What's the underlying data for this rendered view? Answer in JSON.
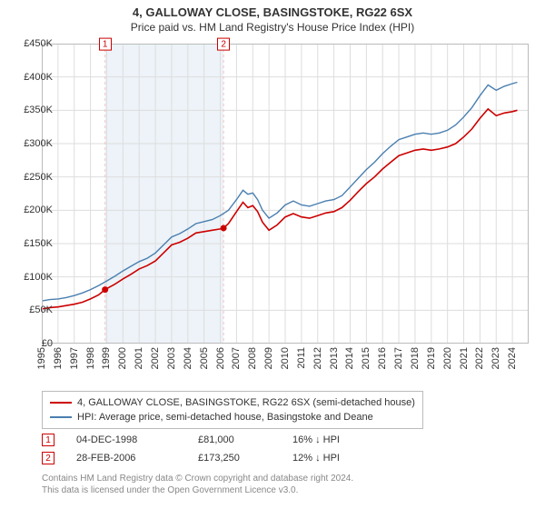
{
  "title_line1": "4, GALLOWAY CLOSE, BASINGSTOKE, RG22 6SX",
  "title_line2": "Price paid vs. HM Land Registry's House Price Index (HPI)",
  "chart": {
    "y_axis": {
      "min": 0,
      "max": 450000,
      "step": 50000,
      "labels": [
        "£0",
        "£50K",
        "£100K",
        "£150K",
        "£200K",
        "£250K",
        "£300K",
        "£350K",
        "£400K",
        "£450K"
      ]
    },
    "x_axis": {
      "min": 1995,
      "max": 2025,
      "labels": [
        "1995",
        "1996",
        "1997",
        "1998",
        "1999",
        "2000",
        "2001",
        "2002",
        "2003",
        "2004",
        "2005",
        "2006",
        "2007",
        "2008",
        "2009",
        "2010",
        "2011",
        "2012",
        "2013",
        "2014",
        "2015",
        "2016",
        "2017",
        "2018",
        "2019",
        "2020",
        "2021",
        "2022",
        "2023",
        "2024"
      ]
    },
    "grid_color": "#dddddd",
    "highlight_band_color": "#edf3f8",
    "highlight_start": 1998.9,
    "highlight_end": 2006.2,
    "vline_color": "#f4c2c2",
    "series": [
      {
        "name": "property",
        "color": "#cc0000",
        "stroke_width": 1.6,
        "points": [
          [
            1995.0,
            52000
          ],
          [
            1995.5,
            54000
          ],
          [
            1996.0,
            55000
          ],
          [
            1996.5,
            57000
          ],
          [
            1997.0,
            59000
          ],
          [
            1997.5,
            62000
          ],
          [
            1998.0,
            67000
          ],
          [
            1998.5,
            73000
          ],
          [
            1998.9,
            81000
          ],
          [
            1999.5,
            89000
          ],
          [
            2000.0,
            97000
          ],
          [
            2000.5,
            104000
          ],
          [
            2001.0,
            112000
          ],
          [
            2001.5,
            117000
          ],
          [
            2002.0,
            124000
          ],
          [
            2002.5,
            136000
          ],
          [
            2003.0,
            148000
          ],
          [
            2003.5,
            152000
          ],
          [
            2004.0,
            158000
          ],
          [
            2004.5,
            166000
          ],
          [
            2005.0,
            168000
          ],
          [
            2005.5,
            170000
          ],
          [
            2006.0,
            172000
          ],
          [
            2006.2,
            173250
          ],
          [
            2006.5,
            180000
          ],
          [
            2007.0,
            198000
          ],
          [
            2007.4,
            212000
          ],
          [
            2007.7,
            204000
          ],
          [
            2008.0,
            207000
          ],
          [
            2008.3,
            198000
          ],
          [
            2008.6,
            182000
          ],
          [
            2009.0,
            170000
          ],
          [
            2009.5,
            178000
          ],
          [
            2010.0,
            190000
          ],
          [
            2010.5,
            195000
          ],
          [
            2011.0,
            190000
          ],
          [
            2011.5,
            188000
          ],
          [
            2012.0,
            192000
          ],
          [
            2012.5,
            196000
          ],
          [
            2013.0,
            198000
          ],
          [
            2013.5,
            204000
          ],
          [
            2014.0,
            215000
          ],
          [
            2014.5,
            228000
          ],
          [
            2015.0,
            240000
          ],
          [
            2015.5,
            250000
          ],
          [
            2016.0,
            262000
          ],
          [
            2016.5,
            272000
          ],
          [
            2017.0,
            282000
          ],
          [
            2017.5,
            286000
          ],
          [
            2018.0,
            290000
          ],
          [
            2018.5,
            292000
          ],
          [
            2019.0,
            290000
          ],
          [
            2019.5,
            292000
          ],
          [
            2020.0,
            295000
          ],
          [
            2020.5,
            300000
          ],
          [
            2021.0,
            310000
          ],
          [
            2021.5,
            322000
          ],
          [
            2022.0,
            338000
          ],
          [
            2022.5,
            352000
          ],
          [
            2023.0,
            342000
          ],
          [
            2023.5,
            346000
          ],
          [
            2024.0,
            348000
          ],
          [
            2024.3,
            350000
          ]
        ]
      },
      {
        "name": "hpi",
        "color": "#4a7fb0",
        "stroke_width": 1.4,
        "points": [
          [
            1995.0,
            64000
          ],
          [
            1995.5,
            66000
          ],
          [
            1996.0,
            67000
          ],
          [
            1996.5,
            69000
          ],
          [
            1997.0,
            72000
          ],
          [
            1997.5,
            76000
          ],
          [
            1998.0,
            81000
          ],
          [
            1998.5,
            87000
          ],
          [
            1999.0,
            94000
          ],
          [
            1999.5,
            101000
          ],
          [
            2000.0,
            109000
          ],
          [
            2000.5,
            116000
          ],
          [
            2001.0,
            123000
          ],
          [
            2001.5,
            128000
          ],
          [
            2002.0,
            136000
          ],
          [
            2002.5,
            148000
          ],
          [
            2003.0,
            160000
          ],
          [
            2003.5,
            165000
          ],
          [
            2004.0,
            172000
          ],
          [
            2004.5,
            180000
          ],
          [
            2005.0,
            183000
          ],
          [
            2005.5,
            186000
          ],
          [
            2006.0,
            192000
          ],
          [
            2006.5,
            200000
          ],
          [
            2007.0,
            216000
          ],
          [
            2007.4,
            230000
          ],
          [
            2007.7,
            224000
          ],
          [
            2008.0,
            226000
          ],
          [
            2008.3,
            216000
          ],
          [
            2008.6,
            200000
          ],
          [
            2009.0,
            188000
          ],
          [
            2009.5,
            196000
          ],
          [
            2010.0,
            208000
          ],
          [
            2010.5,
            214000
          ],
          [
            2011.0,
            208000
          ],
          [
            2011.5,
            206000
          ],
          [
            2012.0,
            210000
          ],
          [
            2012.5,
            214000
          ],
          [
            2013.0,
            216000
          ],
          [
            2013.5,
            222000
          ],
          [
            2014.0,
            235000
          ],
          [
            2014.5,
            248000
          ],
          [
            2015.0,
            261000
          ],
          [
            2015.5,
            272000
          ],
          [
            2016.0,
            285000
          ],
          [
            2016.5,
            296000
          ],
          [
            2017.0,
            306000
          ],
          [
            2017.5,
            310000
          ],
          [
            2018.0,
            314000
          ],
          [
            2018.5,
            316000
          ],
          [
            2019.0,
            314000
          ],
          [
            2019.5,
            316000
          ],
          [
            2020.0,
            320000
          ],
          [
            2020.5,
            328000
          ],
          [
            2021.0,
            340000
          ],
          [
            2021.5,
            354000
          ],
          [
            2022.0,
            372000
          ],
          [
            2022.5,
            388000
          ],
          [
            2023.0,
            380000
          ],
          [
            2023.5,
            386000
          ],
          [
            2024.0,
            390000
          ],
          [
            2024.3,
            392000
          ]
        ]
      }
    ],
    "sale_markers": [
      {
        "label": "1",
        "x": 1998.9,
        "y": 81000
      },
      {
        "label": "2",
        "x": 2006.2,
        "y": 173250
      }
    ]
  },
  "legend": [
    {
      "color": "#cc0000",
      "text": "4, GALLOWAY CLOSE, BASINGSTOKE, RG22 6SX (semi-detached house)"
    },
    {
      "color": "#4a7fb0",
      "text": "HPI: Average price, semi-detached house, Basingstoke and Deane"
    }
  ],
  "sales": [
    {
      "marker": "1",
      "date": "04-DEC-1998",
      "price": "£81,000",
      "delta": "16% ↓ HPI"
    },
    {
      "marker": "2",
      "date": "28-FEB-2006",
      "price": "£173,250",
      "delta": "12% ↓ HPI"
    }
  ],
  "footer_lines": [
    "Contains HM Land Registry data © Crown copyright and database right 2024.",
    "This data is licensed under the Open Government Licence v3.0."
  ]
}
